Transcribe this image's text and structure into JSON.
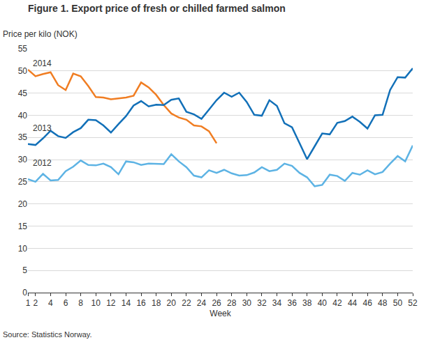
{
  "chart_data": {
    "type": "line",
    "title": "Figure 1. Export price of fresh or chilled farmed salmon",
    "ylabel": "Price per kilo (NOK)",
    "xlabel": "Week",
    "source": "Source: Statistics Norway.",
    "x": [
      1,
      2,
      3,
      4,
      5,
      6,
      7,
      8,
      9,
      10,
      11,
      12,
      13,
      14,
      15,
      16,
      17,
      18,
      19,
      20,
      21,
      22,
      23,
      24,
      25,
      26,
      27,
      28,
      29,
      30,
      31,
      32,
      33,
      34,
      35,
      36,
      37,
      38,
      39,
      40,
      41,
      42,
      43,
      44,
      45,
      46,
      47,
      48,
      49,
      50,
      51,
      52
    ],
    "xlim": [
      1,
      52
    ],
    "xticks": [
      1,
      2,
      4,
      6,
      8,
      10,
      12,
      14,
      16,
      18,
      20,
      22,
      24,
      26,
      28,
      30,
      32,
      34,
      36,
      38,
      40,
      42,
      44,
      46,
      48,
      50,
      52
    ],
    "ylim": [
      0,
      55
    ],
    "yticks": [
      0,
      5,
      10,
      15,
      20,
      25,
      30,
      35,
      40,
      45,
      50,
      55
    ],
    "grid": true,
    "series": [
      {
        "name": "2014",
        "color": "#f07d22",
        "values": [
          50.3,
          48.8,
          49.3,
          49.7,
          46.8,
          45.7,
          49.4,
          48.8,
          46.6,
          44.1,
          44.0,
          43.6,
          43.8,
          44.0,
          44.4,
          47.4,
          46.3,
          44.6,
          42.3,
          40.4,
          39.5,
          39.0,
          37.7,
          37.5,
          36.4,
          33.7,
          null,
          null,
          null,
          null,
          null,
          null,
          null,
          null,
          null,
          null,
          null,
          null,
          null,
          null,
          null,
          null,
          null,
          null,
          null,
          null,
          null,
          null,
          null,
          null,
          null,
          null
        ]
      },
      {
        "name": "2013",
        "color": "#1270b8",
        "values": [
          33.5,
          33.3,
          34.8,
          36.5,
          35.3,
          34.9,
          36.2,
          37.1,
          39.0,
          38.9,
          37.7,
          36.1,
          38.0,
          39.8,
          42.2,
          43.2,
          42.0,
          42.4,
          42.3,
          43.5,
          43.8,
          40.8,
          40.2,
          39.2,
          41.3,
          43.4,
          45.1,
          44.2,
          45.1,
          43.0,
          40.1,
          39.9,
          43.4,
          42.1,
          38.2,
          37.3,
          33.7,
          30.1,
          33.0,
          35.9,
          35.7,
          38.3,
          38.7,
          39.7,
          38.5,
          37.0,
          40.0,
          40.1,
          45.7,
          48.6,
          48.5,
          50.6
        ]
      },
      {
        "name": "2012",
        "color": "#5db3e4",
        "values": [
          25.6,
          25.0,
          26.8,
          25.3,
          25.4,
          27.4,
          28.4,
          29.8,
          28.8,
          28.7,
          29.1,
          28.3,
          26.7,
          29.6,
          29.4,
          28.8,
          29.1,
          29.1,
          29.0,
          31.2,
          29.6,
          28.3,
          26.4,
          26.0,
          27.6,
          27.0,
          27.7,
          26.9,
          26.4,
          26.5,
          27.1,
          28.3,
          27.4,
          27.7,
          29.1,
          28.6,
          27.0,
          26.0,
          24.0,
          24.3,
          26.6,
          26.3,
          25.2,
          27.0,
          26.6,
          27.6,
          26.7,
          27.2,
          29.1,
          30.8,
          29.6,
          33.2
        ]
      }
    ]
  }
}
